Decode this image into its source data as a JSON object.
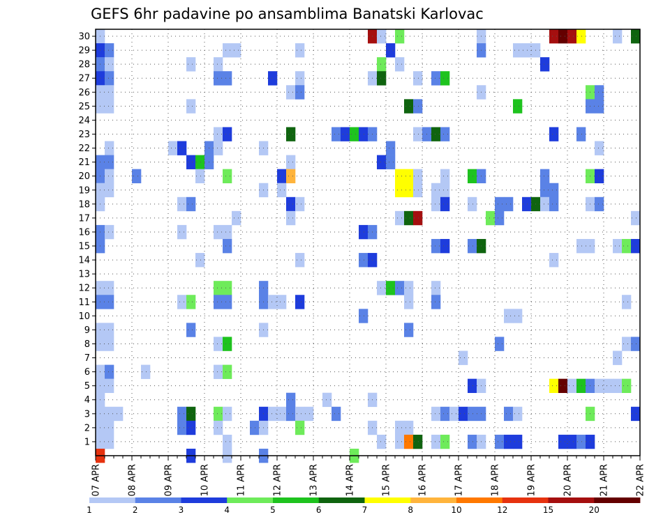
{
  "chart_data": {
    "type": "heatmap",
    "title": "GEFS 6hr padavine po ansamblima Banatski Karlovac",
    "xlabel": "",
    "ylabel": "",
    "x_tick_labels": [
      "07 APR",
      "08 APR",
      "09 APR",
      "10 APR",
      "11 APR",
      "12 APR",
      "13 APR",
      "14 APR",
      "15 APR",
      "16 APR",
      "17 APR",
      "18 APR",
      "19 APR",
      "20 APR",
      "21 APR",
      "22 APR"
    ],
    "x_steps_per_day": 4,
    "x_total_steps": 60,
    "y_members": [
      1,
      2,
      3,
      4,
      5,
      6,
      7,
      8,
      9,
      10,
      11,
      12,
      13,
      14,
      15,
      16,
      17,
      18,
      19,
      20,
      21,
      22,
      23,
      24,
      25,
      26,
      27,
      28,
      29,
      30
    ],
    "colorbar": {
      "labels": [
        "1",
        "2",
        "3",
        "4",
        "5",
        "6",
        "7",
        "8",
        "10",
        "12",
        "15",
        "20"
      ],
      "colors": [
        "#b4c8f5",
        "#5a82e6",
        "#1e3cdc",
        "#6eeb5a",
        "#1ec31e",
        "#0f640f",
        "#ffff00",
        "#ffb43c",
        "#ff7800",
        "#e6320f",
        "#a50f0f",
        "#640000"
      ]
    },
    "cells": [
      [
        0,
        30,
        1
      ],
      [
        30,
        30,
        11
      ],
      [
        31,
        30,
        1
      ],
      [
        33,
        30,
        4
      ],
      [
        42,
        30,
        1
      ],
      [
        50,
        30,
        11
      ],
      [
        51,
        30,
        12
      ],
      [
        52,
        30,
        11
      ],
      [
        53,
        30,
        7
      ],
      [
        57,
        30,
        1
      ],
      [
        59,
        30,
        6
      ],
      [
        0,
        29,
        3
      ],
      [
        1,
        29,
        2
      ],
      [
        14,
        29,
        1
      ],
      [
        15,
        29,
        1
      ],
      [
        22,
        29,
        1
      ],
      [
        32,
        29,
        3
      ],
      [
        42,
        29,
        2
      ],
      [
        46,
        29,
        1
      ],
      [
        47,
        29,
        1
      ],
      [
        48,
        29,
        1
      ],
      [
        0,
        28,
        2
      ],
      [
        1,
        28,
        1
      ],
      [
        10,
        28,
        1
      ],
      [
        13,
        28,
        1
      ],
      [
        31,
        28,
        4
      ],
      [
        33,
        28,
        1
      ],
      [
        49,
        28,
        3
      ],
      [
        0,
        27,
        3
      ],
      [
        1,
        27,
        2
      ],
      [
        13,
        27,
        2
      ],
      [
        14,
        27,
        2
      ],
      [
        19,
        27,
        3
      ],
      [
        22,
        27,
        1
      ],
      [
        30,
        27,
        1
      ],
      [
        31,
        27,
        6
      ],
      [
        35,
        27,
        1
      ],
      [
        37,
        27,
        2
      ],
      [
        38,
        27,
        5
      ],
      [
        0,
        26,
        1
      ],
      [
        1,
        26,
        1
      ],
      [
        21,
        26,
        1
      ],
      [
        22,
        26,
        2
      ],
      [
        42,
        26,
        1
      ],
      [
        54,
        26,
        4
      ],
      [
        55,
        26,
        2
      ],
      [
        0,
        25,
        1
      ],
      [
        1,
        25,
        1
      ],
      [
        10,
        25,
        1
      ],
      [
        34,
        25,
        6
      ],
      [
        35,
        25,
        2
      ],
      [
        46,
        25,
        5
      ],
      [
        54,
        25,
        2
      ],
      [
        55,
        25,
        2
      ],
      [
        13,
        23,
        1
      ],
      [
        14,
        23,
        3
      ],
      [
        21,
        23,
        6
      ],
      [
        26,
        23,
        2
      ],
      [
        27,
        23,
        3
      ],
      [
        28,
        23,
        5
      ],
      [
        29,
        23,
        3
      ],
      [
        30,
        23,
        2
      ],
      [
        35,
        23,
        1
      ],
      [
        36,
        23,
        2
      ],
      [
        37,
        23,
        6
      ],
      [
        38,
        23,
        2
      ],
      [
        50,
        23,
        3
      ],
      [
        53,
        23,
        2
      ],
      [
        1,
        22,
        1
      ],
      [
        8,
        22,
        1
      ],
      [
        9,
        22,
        3
      ],
      [
        12,
        22,
        2
      ],
      [
        13,
        22,
        1
      ],
      [
        18,
        22,
        1
      ],
      [
        32,
        22,
        2
      ],
      [
        55,
        22,
        1
      ],
      [
        0,
        21,
        2
      ],
      [
        1,
        21,
        2
      ],
      [
        10,
        21,
        3
      ],
      [
        11,
        21,
        5
      ],
      [
        12,
        21,
        2
      ],
      [
        21,
        21,
        1
      ],
      [
        31,
        21,
        3
      ],
      [
        32,
        21,
        2
      ],
      [
        0,
        20,
        2
      ],
      [
        1,
        20,
        1
      ],
      [
        4,
        20,
        2
      ],
      [
        11,
        20,
        1
      ],
      [
        14,
        20,
        4
      ],
      [
        20,
        20,
        3
      ],
      [
        21,
        20,
        8
      ],
      [
        33,
        20,
        7
      ],
      [
        34,
        20,
        7
      ],
      [
        35,
        20,
        1
      ],
      [
        38,
        20,
        1
      ],
      [
        41,
        20,
        5
      ],
      [
        42,
        20,
        2
      ],
      [
        49,
        20,
        2
      ],
      [
        54,
        20,
        4
      ],
      [
        55,
        20,
        3
      ],
      [
        0,
        19,
        1
      ],
      [
        1,
        19,
        1
      ],
      [
        18,
        19,
        1
      ],
      [
        20,
        19,
        1
      ],
      [
        33,
        19,
        7
      ],
      [
        34,
        19,
        7
      ],
      [
        35,
        19,
        1
      ],
      [
        37,
        19,
        1
      ],
      [
        38,
        19,
        1
      ],
      [
        49,
        19,
        2
      ],
      [
        50,
        19,
        2
      ],
      [
        0,
        18,
        1
      ],
      [
        9,
        18,
        1
      ],
      [
        10,
        18,
        2
      ],
      [
        21,
        18,
        3
      ],
      [
        22,
        18,
        1
      ],
      [
        37,
        18,
        1
      ],
      [
        38,
        18,
        3
      ],
      [
        41,
        18,
        1
      ],
      [
        44,
        18,
        2
      ],
      [
        45,
        18,
        2
      ],
      [
        47,
        18,
        3
      ],
      [
        48,
        18,
        6
      ],
      [
        49,
        18,
        1
      ],
      [
        50,
        18,
        2
      ],
      [
        54,
        18,
        1
      ],
      [
        55,
        18,
        2
      ],
      [
        15,
        17,
        1
      ],
      [
        21,
        17,
        1
      ],
      [
        33,
        17,
        1
      ],
      [
        34,
        17,
        6
      ],
      [
        35,
        17,
        11
      ],
      [
        43,
        17,
        4
      ],
      [
        44,
        17,
        2
      ],
      [
        59,
        17,
        1
      ],
      [
        0,
        16,
        2
      ],
      [
        1,
        16,
        1
      ],
      [
        9,
        16,
        1
      ],
      [
        13,
        16,
        1
      ],
      [
        14,
        16,
        1
      ],
      [
        29,
        16,
        3
      ],
      [
        30,
        16,
        2
      ],
      [
        0,
        15,
        2
      ],
      [
        14,
        15,
        2
      ],
      [
        37,
        15,
        2
      ],
      [
        38,
        15,
        3
      ],
      [
        41,
        15,
        2
      ],
      [
        42,
        15,
        6
      ],
      [
        53,
        15,
        1
      ],
      [
        54,
        15,
        1
      ],
      [
        57,
        15,
        1
      ],
      [
        58,
        15,
        4
      ],
      [
        59,
        15,
        3
      ],
      [
        11,
        14,
        1
      ],
      [
        22,
        14,
        1
      ],
      [
        29,
        14,
        2
      ],
      [
        30,
        14,
        3
      ],
      [
        50,
        14,
        1
      ],
      [
        0,
        12,
        1
      ],
      [
        1,
        12,
        1
      ],
      [
        13,
        12,
        4
      ],
      [
        14,
        12,
        4
      ],
      [
        18,
        12,
        2
      ],
      [
        31,
        12,
        1
      ],
      [
        32,
        12,
        5
      ],
      [
        33,
        12,
        2
      ],
      [
        34,
        12,
        1
      ],
      [
        37,
        12,
        1
      ],
      [
        0,
        11,
        2
      ],
      [
        1,
        11,
        2
      ],
      [
        9,
        11,
        1
      ],
      [
        10,
        11,
        4
      ],
      [
        13,
        11,
        2
      ],
      [
        14,
        11,
        2
      ],
      [
        18,
        11,
        2
      ],
      [
        19,
        11,
        1
      ],
      [
        20,
        11,
        1
      ],
      [
        22,
        11,
        3
      ],
      [
        34,
        11,
        1
      ],
      [
        37,
        11,
        2
      ],
      [
        58,
        11,
        1
      ],
      [
        29,
        10,
        2
      ],
      [
        45,
        10,
        1
      ],
      [
        46,
        10,
        1
      ],
      [
        0,
        9,
        1
      ],
      [
        1,
        9,
        1
      ],
      [
        10,
        9,
        2
      ],
      [
        18,
        9,
        1
      ],
      [
        34,
        9,
        2
      ],
      [
        0,
        8,
        1
      ],
      [
        1,
        8,
        1
      ],
      [
        13,
        8,
        1
      ],
      [
        14,
        8,
        5
      ],
      [
        44,
        8,
        2
      ],
      [
        58,
        8,
        1
      ],
      [
        59,
        8,
        2
      ],
      [
        40,
        7,
        1
      ],
      [
        57,
        7,
        1
      ],
      [
        0,
        6,
        1
      ],
      [
        1,
        6,
        2
      ],
      [
        5,
        6,
        1
      ],
      [
        13,
        6,
        1
      ],
      [
        14,
        6,
        4
      ],
      [
        0,
        5,
        1
      ],
      [
        1,
        5,
        1
      ],
      [
        41,
        5,
        3
      ],
      [
        42,
        5,
        1
      ],
      [
        50,
        5,
        7
      ],
      [
        51,
        5,
        12
      ],
      [
        52,
        5,
        1
      ],
      [
        53,
        5,
        5
      ],
      [
        54,
        5,
        2
      ],
      [
        55,
        5,
        1
      ],
      [
        56,
        5,
        1
      ],
      [
        57,
        5,
        1
      ],
      [
        58,
        5,
        4
      ],
      [
        0,
        4,
        1
      ],
      [
        21,
        4,
        2
      ],
      [
        25,
        4,
        1
      ],
      [
        30,
        4,
        1
      ],
      [
        0,
        3,
        1
      ],
      [
        1,
        3,
        1
      ],
      [
        2,
        3,
        1
      ],
      [
        9,
        3,
        2
      ],
      [
        10,
        3,
        6
      ],
      [
        13,
        3,
        4
      ],
      [
        14,
        3,
        1
      ],
      [
        18,
        3,
        3
      ],
      [
        19,
        3,
        1
      ],
      [
        20,
        3,
        1
      ],
      [
        21,
        3,
        2
      ],
      [
        22,
        3,
        1
      ],
      [
        23,
        3,
        1
      ],
      [
        26,
        3,
        2
      ],
      [
        37,
        3,
        1
      ],
      [
        38,
        3,
        2
      ],
      [
        39,
        3,
        1
      ],
      [
        40,
        3,
        3
      ],
      [
        41,
        3,
        2
      ],
      [
        42,
        3,
        2
      ],
      [
        45,
        3,
        2
      ],
      [
        46,
        3,
        1
      ],
      [
        54,
        3,
        4
      ],
      [
        59,
        3,
        3
      ],
      [
        0,
        2,
        1
      ],
      [
        1,
        2,
        1
      ],
      [
        9,
        2,
        2
      ],
      [
        10,
        2,
        3
      ],
      [
        13,
        2,
        1
      ],
      [
        17,
        2,
        2
      ],
      [
        18,
        2,
        1
      ],
      [
        22,
        2,
        4
      ],
      [
        30,
        2,
        1
      ],
      [
        33,
        2,
        1
      ],
      [
        34,
        2,
        1
      ],
      [
        0,
        1,
        1
      ],
      [
        1,
        1,
        1
      ],
      [
        14,
        1,
        1
      ],
      [
        31,
        1,
        1
      ],
      [
        33,
        1,
        1
      ],
      [
        34,
        1,
        9
      ],
      [
        35,
        1,
        6
      ],
      [
        37,
        1,
        1
      ],
      [
        38,
        1,
        4
      ],
      [
        41,
        1,
        2
      ],
      [
        42,
        1,
        1
      ],
      [
        44,
        1,
        2
      ],
      [
        45,
        1,
        3
      ],
      [
        46,
        1,
        3
      ],
      [
        51,
        1,
        3
      ],
      [
        52,
        1,
        3
      ],
      [
        53,
        1,
        2
      ],
      [
        54,
        1,
        3
      ],
      [
        0,
        0,
        10
      ],
      [
        10,
        0,
        3
      ],
      [
        14,
        0,
        1
      ],
      [
        18,
        0,
        2
      ],
      [
        28,
        0,
        4
      ]
    ]
  }
}
